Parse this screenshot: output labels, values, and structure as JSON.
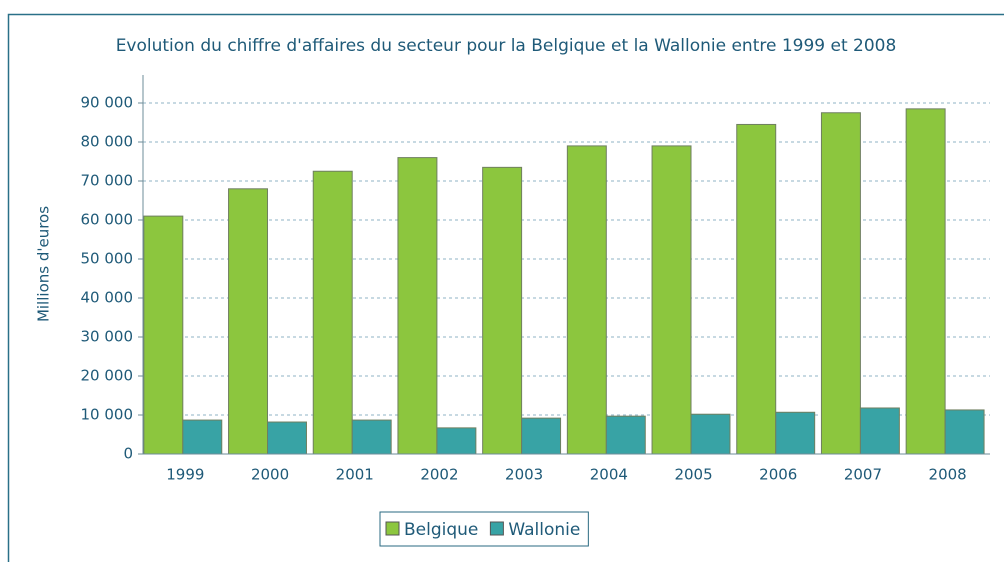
{
  "chart_data": {
    "type": "bar",
    "title": "Evolution du chiffre d'affaires du secteur pour la Belgique et la Wallonie entre 1999 et 2008",
    "y_label": "Millions d'euros",
    "categories": [
      "1999",
      "2000",
      "2001",
      "2002",
      "2003",
      "2004",
      "2005",
      "2006",
      "2007",
      "2008"
    ],
    "series": [
      {
        "name": "Belgique",
        "color": "#8cc63e",
        "values": [
          61000,
          68000,
          72500,
          76000,
          73500,
          79000,
          79000,
          84500,
          87500,
          88500
        ]
      },
      {
        "name": "Wallonie",
        "color": "#38a3a5",
        "values": [
          8700,
          8200,
          8700,
          6700,
          9200,
          9700,
          10200,
          10700,
          11800,
          11300
        ]
      }
    ],
    "ylim": [
      0,
      90000
    ],
    "yticks": [
      0,
      {
        "value": 10000,
        "label": "10 000"
      },
      {
        "value": 20000,
        "label": "20 000"
      },
      {
        "value": 30000,
        "label": "30 000"
      },
      {
        "value": 40000,
        "label": "40 000"
      },
      {
        "value": 50000,
        "label": "50 000"
      },
      {
        "value": 60000,
        "label": "60 000"
      },
      {
        "value": 70000,
        "label": "70 000"
      },
      {
        "value": 80000,
        "label": "80 000"
      },
      {
        "value": 90000,
        "label": "90 000"
      }
    ],
    "grid": true,
    "legend": "bottom"
  }
}
